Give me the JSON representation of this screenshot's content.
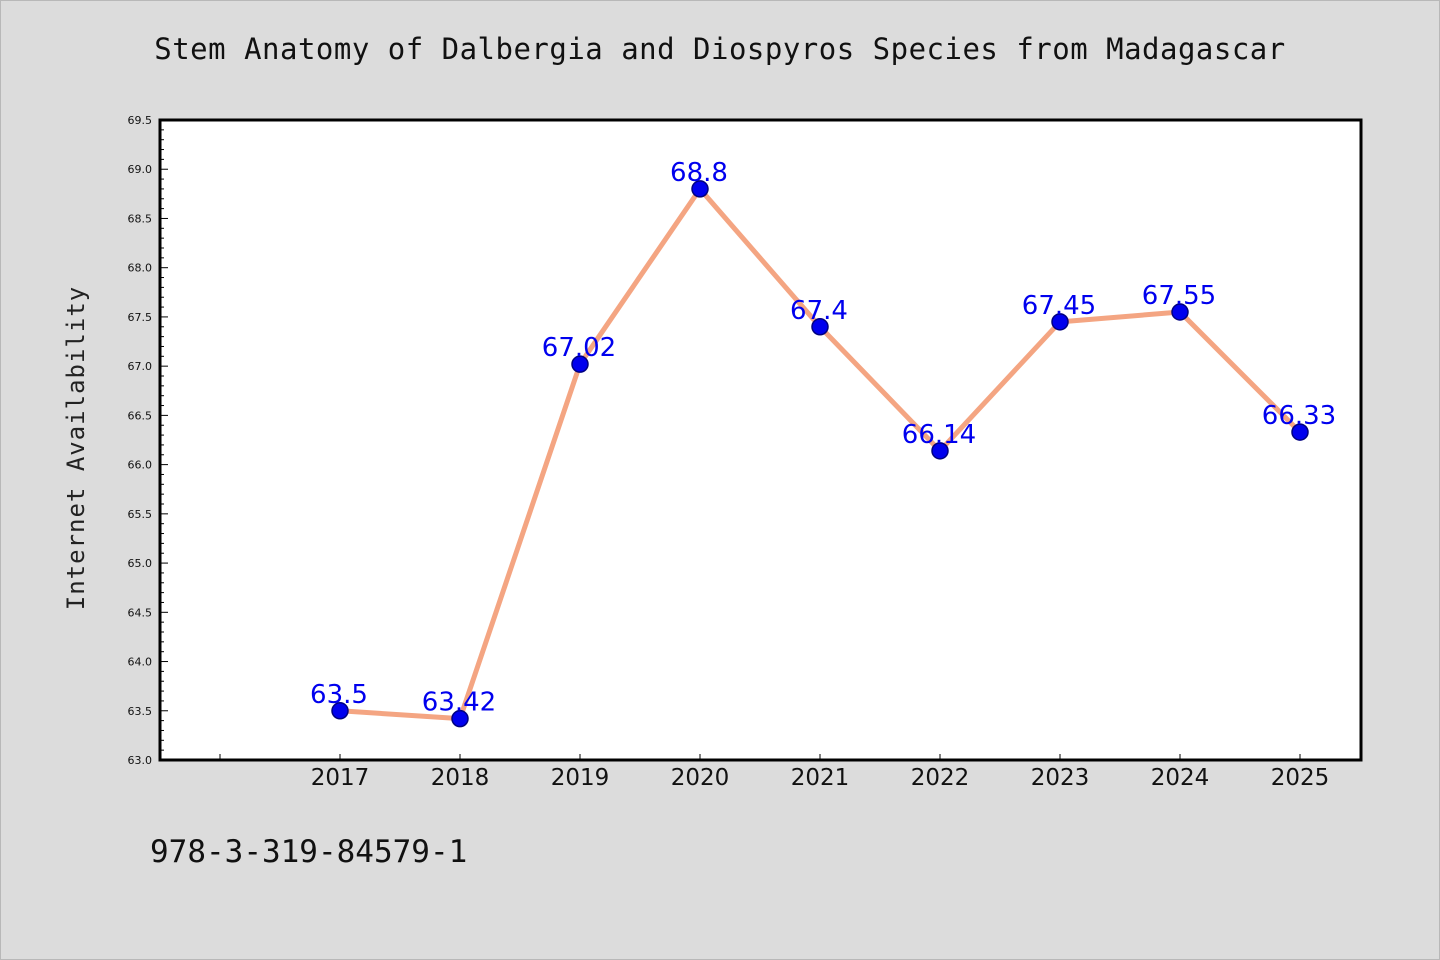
{
  "chart_data": {
    "type": "line",
    "title": "Stem Anatomy of Dalbergia and Diospyros Species from Madagascar",
    "ylabel": "Internet Availability",
    "xlabel": "",
    "categories": [
      "2017",
      "2018",
      "2019",
      "2020",
      "2021",
      "2022",
      "2023",
      "2024",
      "2025"
    ],
    "series": [
      {
        "values": [
          63.5,
          63.42,
          67.02,
          68.8,
          67.4,
          66.14,
          67.45,
          67.55,
          66.33
        ],
        "data_labels": [
          "63.5",
          "63.42",
          "67.02",
          "68.8",
          "67.4",
          "66.14",
          "67.45",
          "67.55",
          "66.33"
        ]
      }
    ],
    "ylim": [
      63.0,
      69.5
    ],
    "yticks": [
      "63.0",
      "63.5",
      "64.0",
      "64.5",
      "65.0",
      "65.5",
      "66.0",
      "66.5",
      "67.0",
      "67.5",
      "68.0",
      "68.5",
      "69.0",
      "69.5"
    ],
    "grid": false,
    "colors": {
      "line": "#f4a582",
      "marker": "#0000ee",
      "marker_edge": "#000080",
      "data_label": "#0000ee",
      "plot_background": "#ffffff",
      "page_background": "#dcdcdc"
    }
  },
  "footer": {
    "code": "978-3-319-84579-1"
  }
}
